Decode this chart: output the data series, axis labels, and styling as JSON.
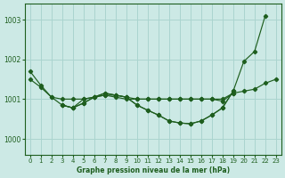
{
  "xlabel": "Graphe pression niveau de la mer (hPa)",
  "background_color": "#cce9e5",
  "plot_bg_color": "#cce9e5",
  "grid_color": "#aad4cf",
  "line_color": "#1e5e1e",
  "ylim": [
    999.6,
    1003.4
  ],
  "yticks": [
    1000,
    1001,
    1002,
    1003
  ],
  "xlim": [
    -0.5,
    23.5
  ],
  "xticks": [
    0,
    1,
    2,
    3,
    4,
    5,
    6,
    7,
    8,
    9,
    10,
    11,
    12,
    13,
    14,
    15,
    16,
    17,
    18,
    19,
    20,
    21,
    22,
    23
  ],
  "series": [
    [
      1001.7,
      1001.35,
      1001.05,
      1000.85,
      1000.78,
      1000.9,
      1001.05,
      1001.15,
      1001.1,
      1001.05,
      1000.85,
      1000.72,
      1000.6,
      1000.45,
      1000.4,
      1000.38,
      1000.45,
      1000.6,
      1000.78,
      1001.2,
      1001.95,
      1002.2,
      1003.1,
      null
    ],
    [
      1001.5,
      1001.3,
      1001.05,
      1001.0,
      1001.0,
      1001.0,
      1001.05,
      1001.1,
      1001.05,
      1001.0,
      1001.0,
      1001.0,
      1001.0,
      1001.0,
      1001.0,
      1001.0,
      1001.0,
      1001.0,
      1001.0,
      1001.15,
      1001.2,
      1001.25,
      1001.4,
      1001.5
    ],
    [
      null,
      null,
      null,
      1000.85,
      1000.78,
      1000.9,
      1001.05,
      1001.15,
      1001.1,
      1001.05,
      1000.85,
      1000.72,
      1000.6,
      1000.45,
      1000.4,
      1000.38,
      1000.45,
      1000.6,
      1000.78,
      1001.2,
      null,
      null,
      null,
      null
    ],
    [
      null,
      null,
      null,
      1000.85,
      1000.78,
      1001.0,
      1001.05,
      1001.1,
      1001.1,
      1001.05,
      1001.0,
      1001.0,
      1001.0,
      1001.0,
      1001.0,
      1001.0,
      1001.0,
      1001.0,
      1000.95,
      1001.15,
      null,
      null,
      null,
      null
    ]
  ]
}
